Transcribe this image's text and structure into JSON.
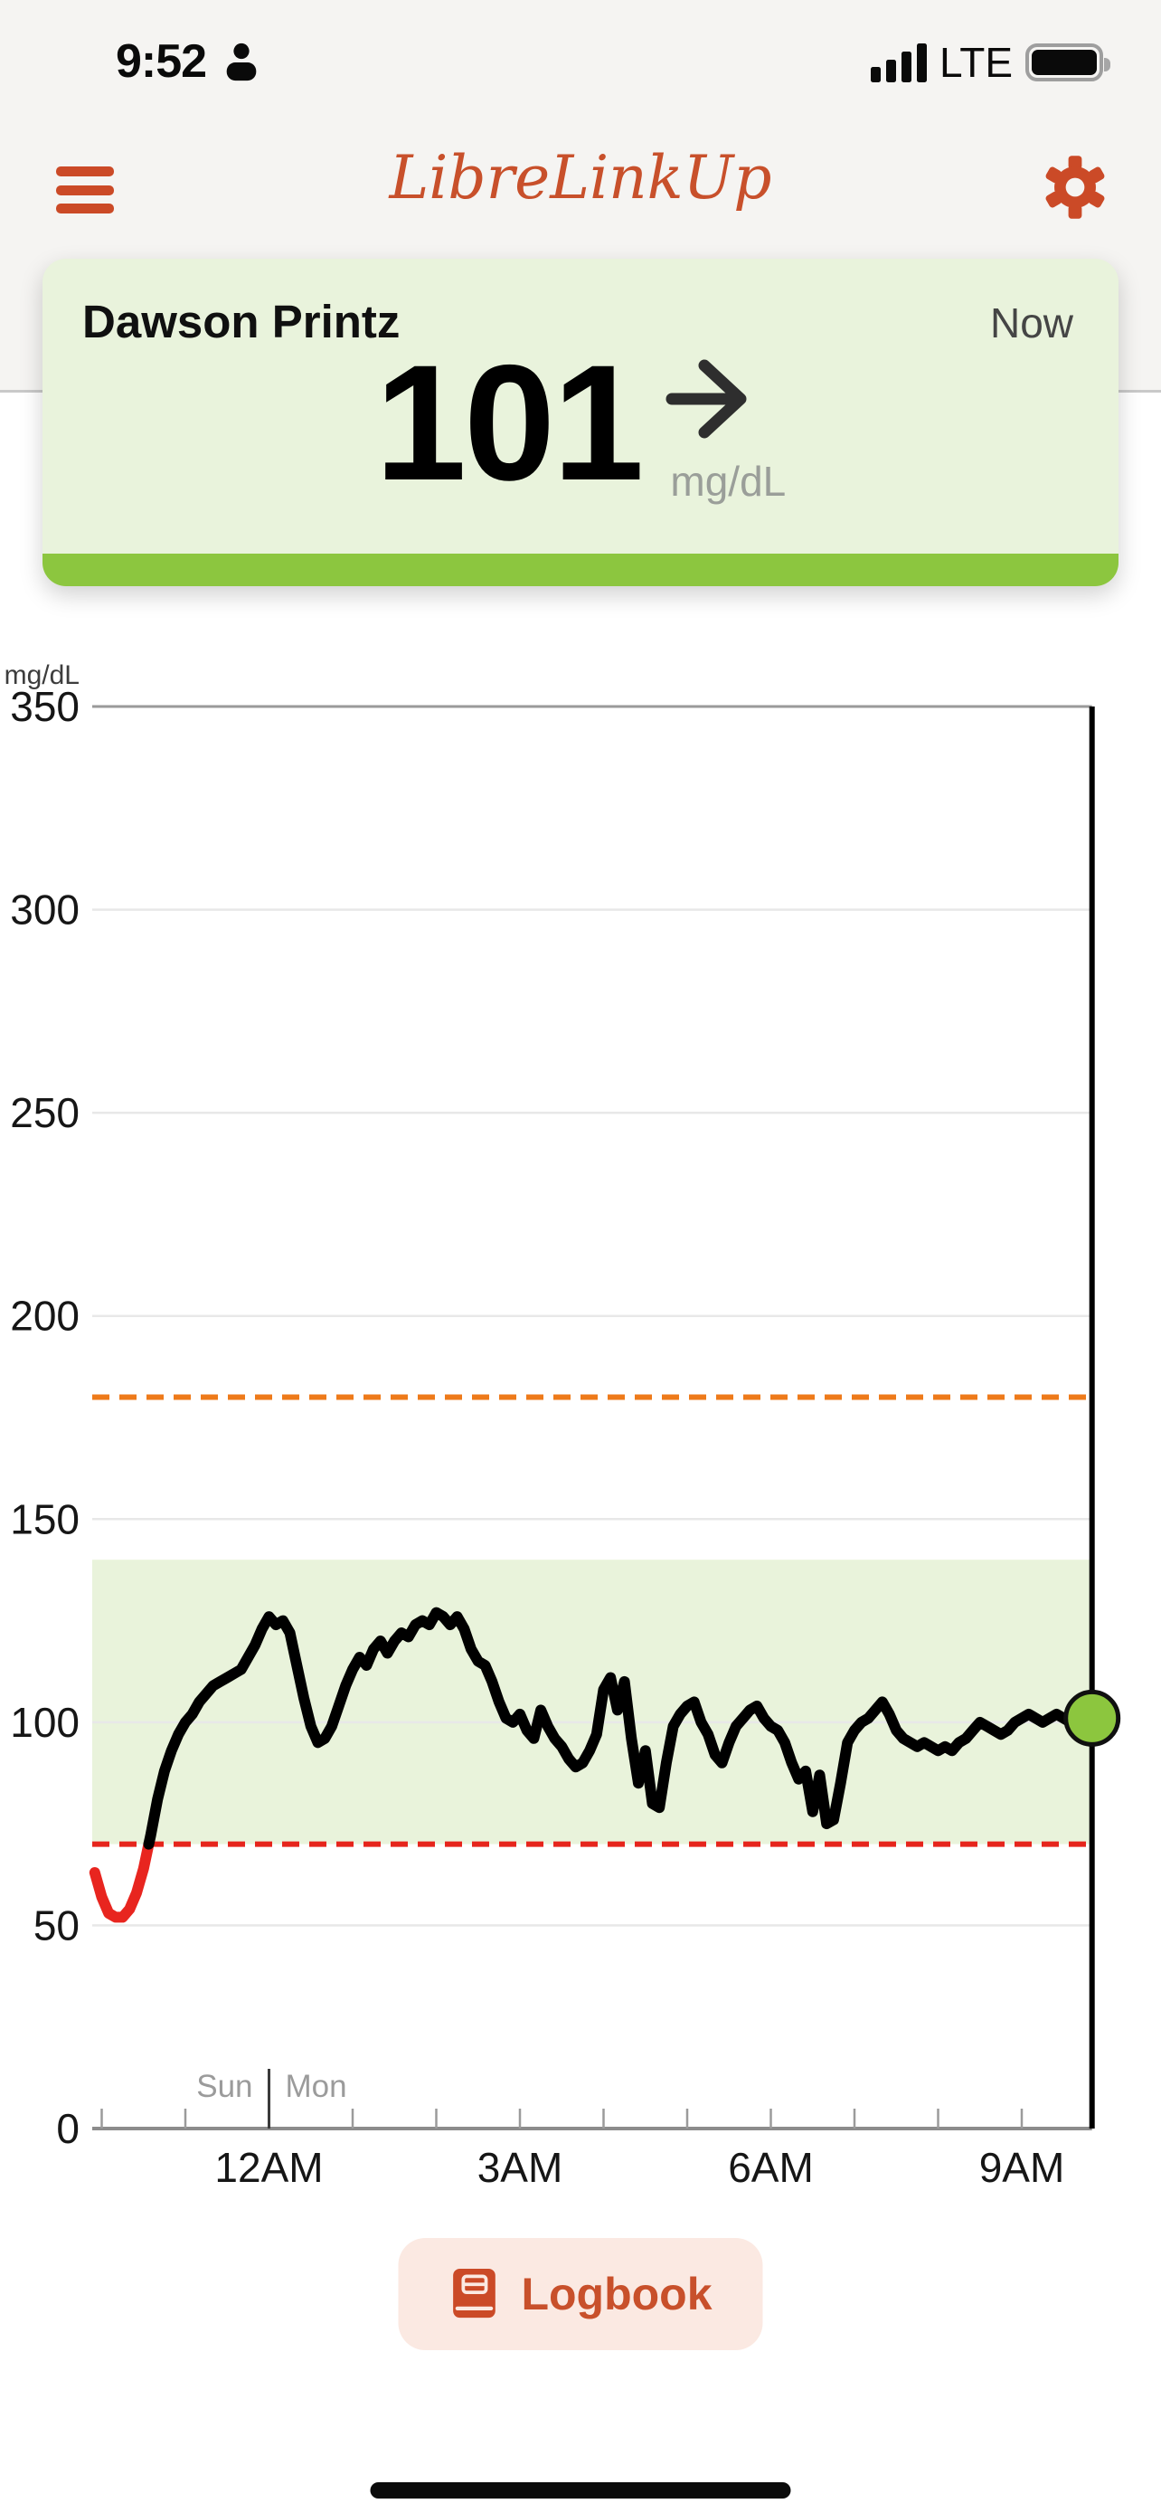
{
  "status_bar": {
    "time": "9:52",
    "network": "LTE"
  },
  "header": {
    "title": "LibreLinkUp",
    "brand_color": "#C8502B"
  },
  "patient_card": {
    "name": "Dawson Printz",
    "timestamp_label": "Now",
    "glucose_value": "101",
    "unit": "mg/dL",
    "trend": "steady",
    "card_bg": "#E9F3DC",
    "status_strip_color": "#8CC63F"
  },
  "chart_data": {
    "type": "line",
    "title": "",
    "xlabel": "",
    "ylabel": "mg/dL",
    "ylim": [
      0,
      350
    ],
    "grid": true,
    "y_ticks": [
      0,
      50,
      100,
      150,
      200,
      250,
      300,
      350
    ],
    "x_axis": {
      "hour_ticks_rel_midnight": [
        -2,
        -1,
        0,
        1,
        2,
        3,
        4,
        5,
        6,
        7,
        8,
        9
      ],
      "labeled_ticks": [
        {
          "hour": 0,
          "label": "12AM"
        },
        {
          "hour": 3,
          "label": "3AM"
        },
        {
          "hour": 6,
          "label": "6AM"
        },
        {
          "hour": 9,
          "label": "9AM"
        }
      ],
      "day_boundary": {
        "hour": 0,
        "left_label": "Sun",
        "right_label": "Mon"
      },
      "now_hour_rel_midnight": 9.84
    },
    "target_range": {
      "low": 70,
      "high": 140,
      "band_color": "#E9F3DB"
    },
    "high_threshold": {
      "value": 180,
      "color": "#EE7A1A",
      "style": "dashed"
    },
    "low_threshold": {
      "value": 70,
      "color": "#E6251C",
      "style": "dashed"
    },
    "series": [
      {
        "name": "glucose",
        "unit": "mg/dL",
        "start_time": "Sun 21:55",
        "start_hour_rel_midnight": -2.0833,
        "interval_minutes": 5,
        "color": "#000000",
        "below_low_color": "#E8251F",
        "values": [
          63,
          57,
          53,
          52,
          52,
          54,
          58,
          64,
          72,
          81,
          88,
          93,
          97,
          100,
          102,
          105,
          107,
          109,
          110,
          111,
          112,
          113,
          116,
          119,
          123,
          126,
          124,
          125,
          122,
          114,
          106,
          99,
          95,
          96,
          99,
          104,
          109,
          113,
          116,
          114,
          118,
          120,
          117,
          120,
          122,
          121,
          124,
          125,
          124,
          127,
          126,
          124,
          126,
          123,
          118,
          115,
          114,
          110,
          105,
          101,
          100,
          102,
          98,
          96,
          103,
          99,
          96,
          94,
          91,
          89,
          90,
          93,
          97,
          108,
          111,
          103,
          110,
          96,
          85,
          93,
          80,
          79,
          90,
          99,
          102,
          104,
          105,
          100,
          97,
          92,
          90,
          95,
          99,
          101,
          103,
          104,
          101,
          99,
          98,
          95,
          90,
          86,
          88,
          78,
          87,
          75,
          76,
          85,
          95,
          98,
          100,
          101,
          103,
          105,
          102,
          98,
          96,
          95,
          94,
          95,
          94,
          93,
          94,
          93,
          95,
          96,
          98,
          100,
          99,
          98,
          97,
          98,
          100,
          101,
          102,
          101,
          100,
          101,
          102,
          101,
          100,
          101,
          101,
          101
        ]
      }
    ],
    "current_reading": {
      "time": "Mon 9:52",
      "value": 101,
      "marker_color": "#8CC63E"
    }
  },
  "logbook_button": {
    "label": "Logbook",
    "text_color": "#C8502B",
    "bg": "#FBE9E2"
  }
}
